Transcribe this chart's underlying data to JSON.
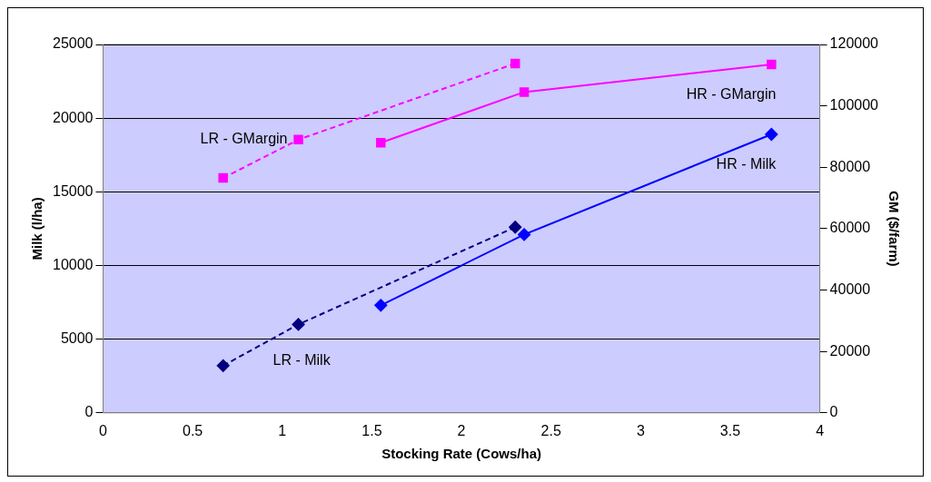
{
  "chart_data": {
    "type": "line",
    "xlabel": "Stocking Rate (Cows/ha)",
    "ylabel": "Milk (l/ha)",
    "y2label": "GM ($/farm)",
    "xlim": [
      0,
      4
    ],
    "xticks": [
      0,
      0.5,
      1,
      1.5,
      2,
      2.5,
      3,
      3.5,
      4
    ],
    "ylim": [
      0,
      25000
    ],
    "yticks": [
      0,
      5000,
      10000,
      15000,
      20000,
      25000
    ],
    "y2lim": [
      0,
      120000
    ],
    "y2ticks": [
      0,
      20000,
      40000,
      60000,
      80000,
      100000,
      120000
    ],
    "grid": "y",
    "legend": false,
    "series": [
      {
        "name": "LR - Milk",
        "color": "#000080",
        "x": [
          0.67,
          1.09,
          2.3
        ],
        "values": [
          3200,
          6000,
          12600
        ],
        "marker": "diamond",
        "line_style": "dashed"
      },
      {
        "name": "HR - Milk",
        "color": "#0000ff",
        "x": [
          1.55,
          2.35,
          3.73
        ],
        "values": [
          7300,
          12100,
          18900
        ],
        "marker": "diamond",
        "line_style": "solid"
      },
      {
        "name": "LR - GMargin",
        "color": "#ff00ff",
        "x": [
          0.67,
          1.09,
          2.3
        ],
        "values": [
          76500,
          89000,
          113800
        ],
        "marker": "square",
        "line_style": "dashed",
        "axis": "y2"
      },
      {
        "name": "HR - GMargin",
        "color": "#ff00ff",
        "x": [
          1.55,
          2.35,
          3.73
        ],
        "values": [
          88000,
          104500,
          113500
        ],
        "marker": "square",
        "line_style": "solid",
        "axis": "y2"
      }
    ]
  }
}
